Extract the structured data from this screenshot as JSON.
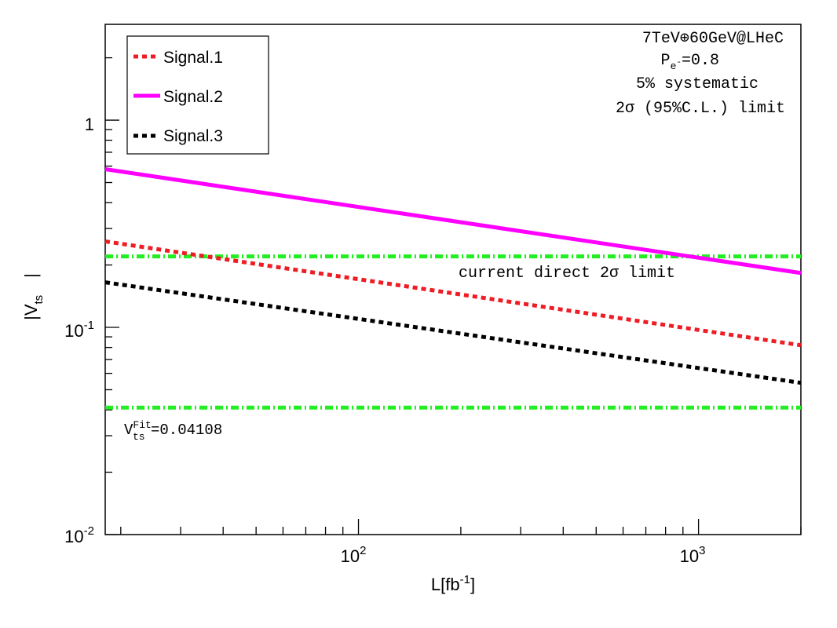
{
  "chart_data": {
    "type": "line",
    "xscale": "log",
    "yscale": "log",
    "xlim": [
      18,
      2000
    ],
    "ylim": [
      0.01,
      2.9
    ],
    "xlabel": {
      "base": "L[fb",
      "sup": "-1",
      "tail": "]"
    },
    "ylabel": {
      "base": "|V",
      "sub": "ts",
      "tail": "|"
    },
    "xticks": [
      {
        "base": "10",
        "exp": "2"
      },
      {
        "base": "10",
        "exp": "3"
      }
    ],
    "yticks": [
      {
        "base": "10",
        "exp": "-2"
      },
      {
        "base": "10",
        "exp": "-1"
      },
      {
        "text": "1"
      }
    ],
    "series": [
      {
        "name": "Signal.1",
        "style": "dotted",
        "color": "#ee1c24",
        "x": [
          18,
          2000
        ],
        "y": [
          0.26,
          0.082
        ]
      },
      {
        "name": "Signal.2",
        "style": "solid",
        "color": "#ff00ff",
        "x": [
          18,
          2000
        ],
        "y": [
          0.58,
          0.183
        ]
      },
      {
        "name": "Signal.3",
        "style": "dotted",
        "color": "#000000",
        "x": [
          18,
          2000
        ],
        "y": [
          0.165,
          0.054
        ]
      }
    ],
    "reference_lines": [
      {
        "name": "current-direct-limit",
        "y": 0.22,
        "label": "current direct 2σ limit",
        "color": "#22ee22"
      },
      {
        "name": "vts-fit",
        "y": 0.041,
        "label_base": "V",
        "label_sup": "Fit",
        "label_sub": "ts",
        "label_value": "=0.04108",
        "color": "#22ee22"
      }
    ],
    "legend": {
      "position": "top-left",
      "entries": [
        "Signal.1",
        "Signal.2",
        "Signal.3"
      ]
    },
    "annotations": {
      "line1": "7TeV⊕60GeV@LHeC",
      "line2_base": "P",
      "line2_sub": "e",
      "line2_subsup": "-",
      "line2_value": "=0.8",
      "line3": "5% systematic",
      "line4": "2σ (95%C.L.) limit"
    }
  }
}
